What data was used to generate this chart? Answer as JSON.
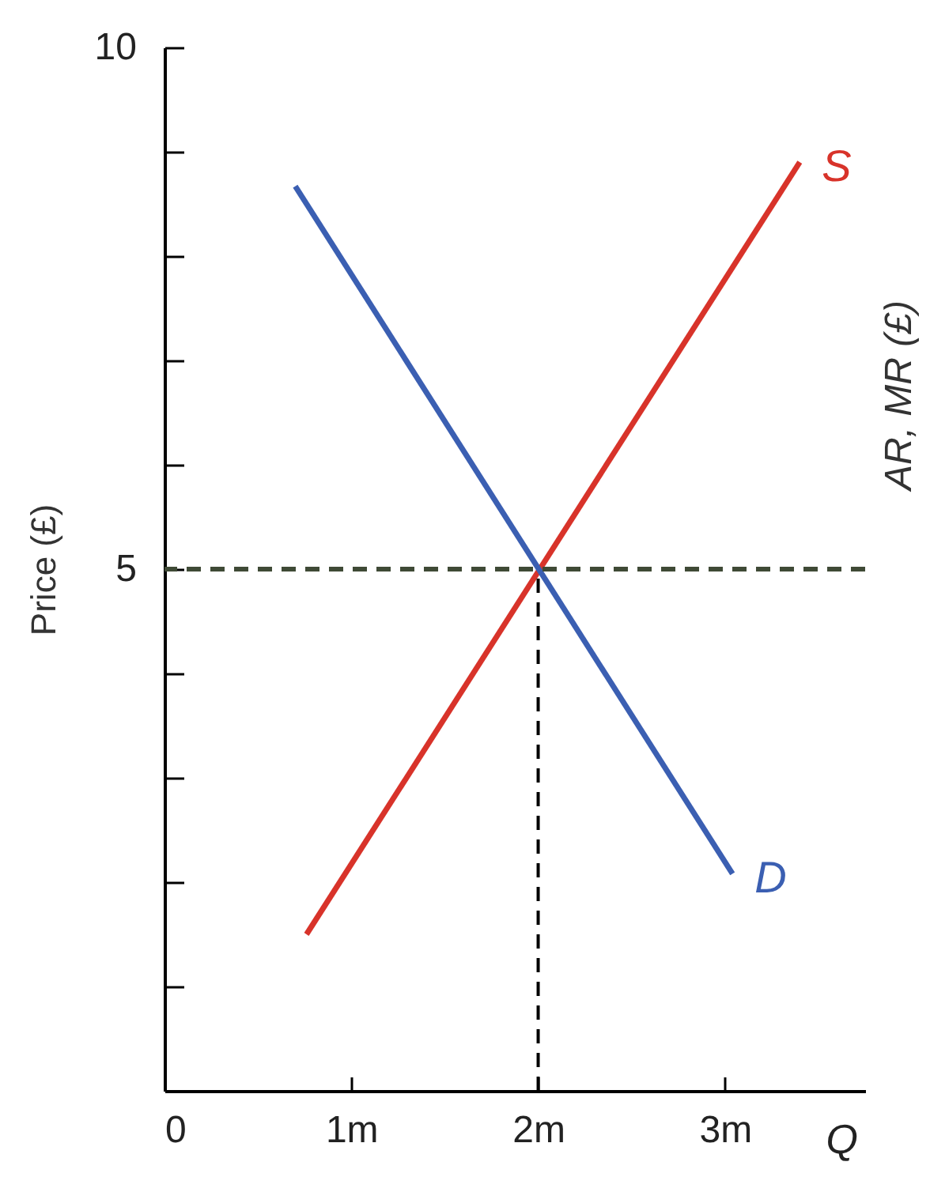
{
  "chart_data": {
    "type": "line",
    "xlabel": "Q",
    "ylabel": "Price (£)",
    "y2label": "AR, MR (£)",
    "xlim": [
      0,
      3.75
    ],
    "xticks": [
      {
        "value": 0,
        "label": "0"
      },
      {
        "value": 1,
        "label": "1m"
      },
      {
        "value": 2,
        "label": "2m"
      },
      {
        "value": 3,
        "label": "3m"
      }
    ],
    "ylim": [
      0,
      10
    ],
    "yticks": [
      {
        "value": 1,
        "label": null
      },
      {
        "value": 2,
        "label": null
      },
      {
        "value": 3,
        "label": null
      },
      {
        "value": 4,
        "label": null
      },
      5,
      {
        "value": 6,
        "label": null
      },
      {
        "value": 7,
        "label": null
      },
      {
        "value": 8,
        "label": null
      },
      {
        "value": 9,
        "label": null
      },
      10
    ],
    "series": [
      {
        "name": "S",
        "color": "#d8332a",
        "x": [
          0.76,
          3.4
        ],
        "values": [
          1.5,
          8.9
        ]
      },
      {
        "name": "D",
        "color": "#3b5fb2",
        "x": [
          0.7,
          3.04
        ],
        "values": [
          8.67,
          2.08
        ]
      },
      {
        "color": "#000000",
        "line_style": "dashed",
        "x": [
          2,
          2
        ],
        "values": [
          0,
          5
        ]
      }
    ],
    "ref_lines": [
      {
        "axis": "y",
        "value": 5,
        "color": "#3f4a36",
        "line_style": "dashed"
      }
    ]
  }
}
